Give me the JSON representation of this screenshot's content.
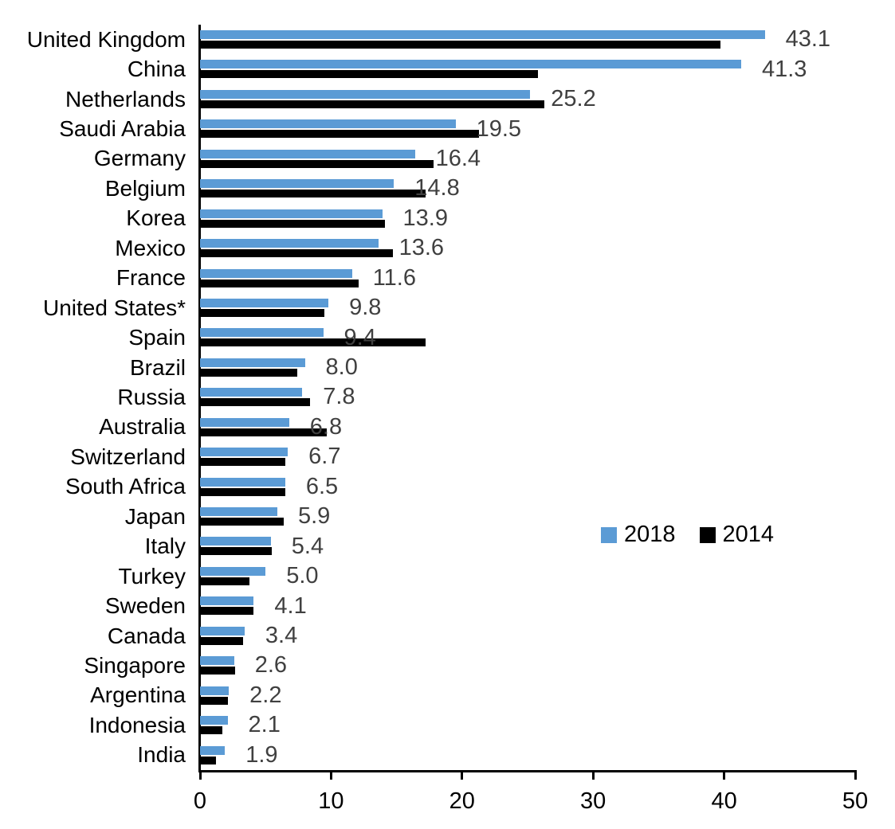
{
  "chart_data": {
    "type": "bar",
    "orientation": "horizontal",
    "title": "",
    "categories": [
      "United Kingdom",
      "China",
      "Netherlands",
      "Saudi Arabia",
      "Germany",
      "Belgium",
      "Korea",
      "Mexico",
      "France",
      "United States*",
      "Spain",
      "Brazil",
      "Russia",
      "Australia",
      "Switzerland",
      "South Africa",
      "Japan",
      "Italy",
      "Turkey",
      "Sweden",
      "Canada",
      "Singapore",
      "Argentina",
      "Indonesia",
      "India"
    ],
    "series": [
      {
        "name": "2018",
        "color": "#5B9BD5",
        "values": [
          43.1,
          41.3,
          25.2,
          19.5,
          16.4,
          14.8,
          13.9,
          13.6,
          11.6,
          9.8,
          9.4,
          8.0,
          7.8,
          6.8,
          6.7,
          6.5,
          5.9,
          5.4,
          5.0,
          4.1,
          3.4,
          2.6,
          2.2,
          2.1,
          1.9
        ]
      },
      {
        "name": "2014",
        "color": "#000000",
        "values": [
          39.7,
          25.8,
          26.3,
          21.3,
          17.8,
          17.2,
          14.1,
          14.7,
          12.1,
          9.5,
          17.2,
          7.4,
          8.4,
          9.7,
          6.5,
          6.5,
          6.4,
          5.5,
          3.8,
          4.1,
          3.3,
          2.7,
          2.1,
          1.7,
          1.2
        ]
      }
    ],
    "data_labels": {
      "series": "2018",
      "color": "#404040",
      "values": [
        "43.1",
        "41.3",
        "25.2",
        "19.5",
        "16.4",
        "14.8",
        "13.9",
        "13.6",
        "11.6",
        "9.8",
        "9.4",
        "8.0",
        "7.8",
        "6.8",
        "6.7",
        "6.5",
        "5.9",
        "5.4",
        "5.0",
        "4.1",
        "3.4",
        "2.6",
        "2.2",
        "2.1",
        "1.9"
      ]
    },
    "x_axis": {
      "min": 0,
      "max": 50,
      "tick_labels": [
        "0",
        "10",
        "20",
        "30",
        "40",
        "50"
      ],
      "grid": false
    },
    "legend": {
      "position": "center-right",
      "entries": [
        {
          "label": "2018",
          "color": "#5B9BD5"
        },
        {
          "label": "2014",
          "color": "#000000"
        }
      ]
    },
    "axis_color": "#000000"
  }
}
